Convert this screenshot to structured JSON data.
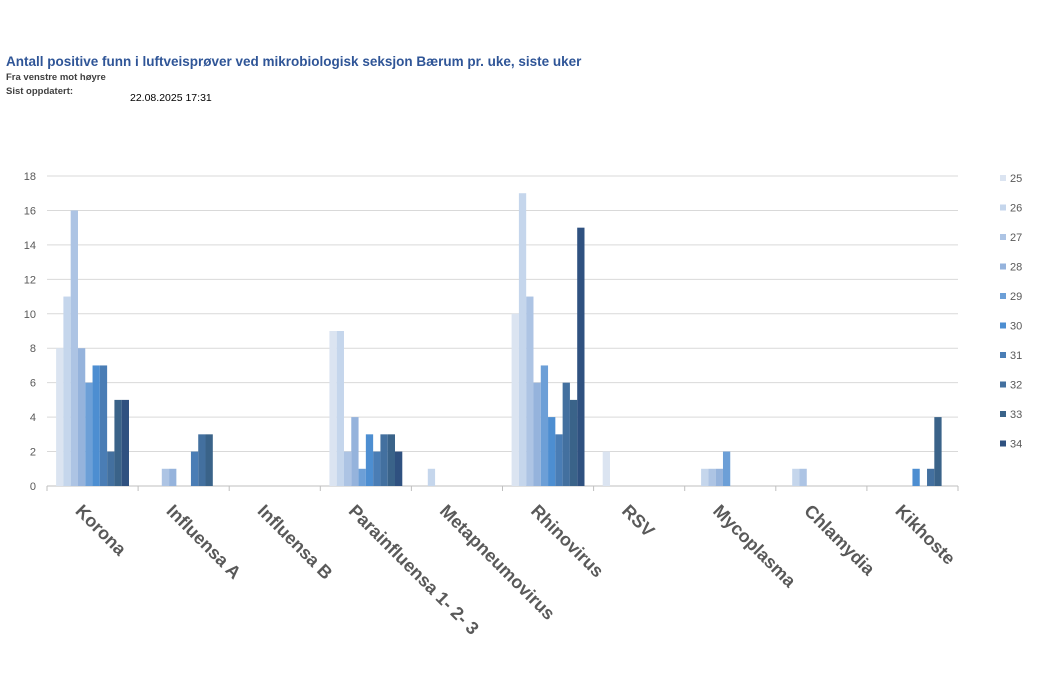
{
  "header": {
    "title": "Antall positive funn i luftveisprøver ved mikrobiologisk seksjon Bærum pr. uke, siste uker",
    "subtitle": "Fra venstre mot høyre",
    "updated_label": "Sist oppdatert:",
    "updated_value": "22.08.2025 17:31"
  },
  "chart_data": {
    "type": "bar",
    "title": "Antall positive funn i luftveisprøver ved mikrobiologisk seksjon Bærum pr. uke, siste uker",
    "xlabel": "",
    "ylabel": "",
    "ylim": [
      0,
      18
    ],
    "yticks": [
      "0",
      "2",
      "4",
      "6",
      "8",
      "10",
      "12",
      "14",
      "16",
      "18"
    ],
    "grid": true,
    "legend_position": "right",
    "categories": [
      "Korona",
      "Influensa A",
      "Influensa B",
      "Parainfluensa 1- 2- 3",
      "Metapneumovirus",
      "Rhinovirus",
      "RSV",
      "Mycoplasma",
      "Chlamydia",
      "Kikhoste"
    ],
    "series": [
      {
        "name": "25",
        "color": "#dbe4f1",
        "values": [
          8,
          0,
          0,
          9,
          0,
          10,
          2,
          0,
          0,
          0
        ]
      },
      {
        "name": "26",
        "color": "#c5d6ec",
        "values": [
          11,
          0,
          0,
          9,
          1,
          17,
          0,
          1,
          1,
          0
        ]
      },
      {
        "name": "27",
        "color": "#adc4e4",
        "values": [
          16,
          1,
          0,
          2,
          0,
          11,
          0,
          1,
          1,
          0
        ]
      },
      {
        "name": "28",
        "color": "#95b3dc",
        "values": [
          8,
          1,
          0,
          4,
          0,
          6,
          0,
          1,
          0,
          0
        ]
      },
      {
        "name": "29",
        "color": "#6c9fd7",
        "values": [
          6,
          0,
          0,
          1,
          0,
          7,
          0,
          2,
          0,
          0
        ]
      },
      {
        "name": "30",
        "color": "#4d8ed1",
        "values": [
          7,
          0,
          0,
          3,
          0,
          4,
          0,
          0,
          0,
          1
        ]
      },
      {
        "name": "31",
        "color": "#4a7db5",
        "values": [
          7,
          2,
          0,
          2,
          0,
          3,
          0,
          0,
          0,
          0
        ]
      },
      {
        "name": "32",
        "color": "#43709f",
        "values": [
          2,
          3,
          0,
          3,
          0,
          6,
          0,
          0,
          0,
          1
        ]
      },
      {
        "name": "33",
        "color": "#3a6389",
        "values": [
          5,
          3,
          0,
          3,
          0,
          5,
          0,
          0,
          0,
          4
        ]
      },
      {
        "name": "34",
        "color": "#2f5180",
        "values": [
          5,
          0,
          0,
          2,
          0,
          15,
          0,
          0,
          0,
          0
        ]
      }
    ]
  }
}
